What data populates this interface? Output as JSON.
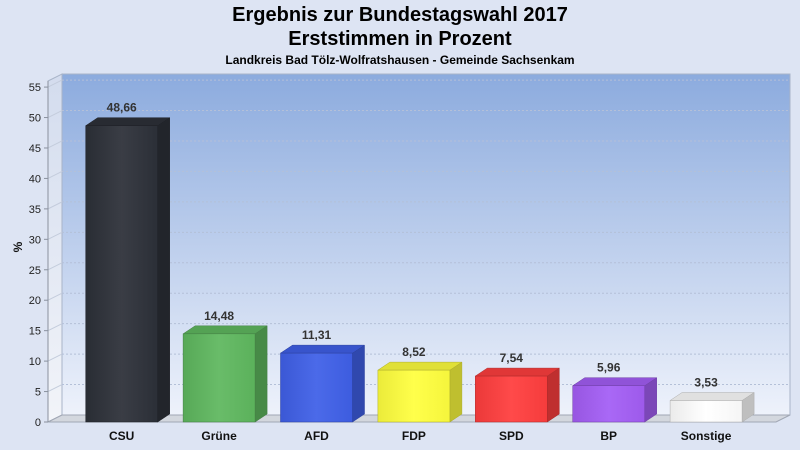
{
  "chart_data": {
    "type": "bar",
    "three_d": true,
    "title": [
      "Ergebnis zur Bundestagswahl 2017",
      "Erststimmen in Prozent"
    ],
    "subtitle": "Landkreis Bad Tölz-Wolfratshausen - Gemeinde Sachsenkam",
    "ylabel": "%",
    "categories": [
      "CSU",
      "Grüne",
      "AFD",
      "FDP",
      "SPD",
      "BP",
      "Sonstige"
    ],
    "values": [
      48.66,
      14.48,
      11.31,
      8.52,
      7.54,
      5.96,
      3.53
    ],
    "data_labels": [
      "48,66",
      "14,48",
      "11,31",
      "8,52",
      "7,54",
      "5,96",
      "3,53"
    ],
    "colors": [
      "#2d3139",
      "#5fb85f",
      "#4060e8",
      "#ffff3f",
      "#ff3e3e",
      "#a45ef5",
      "#ffffff"
    ],
    "ylim": [
      0,
      56
    ],
    "yticks": [
      0,
      5,
      10,
      15,
      20,
      25,
      30,
      35,
      40,
      45,
      50,
      55
    ],
    "grid": true,
    "legend": false,
    "background_color": "#dde4f3",
    "plot_background_colors": [
      "#8cabde",
      "#eef2fb"
    ]
  }
}
